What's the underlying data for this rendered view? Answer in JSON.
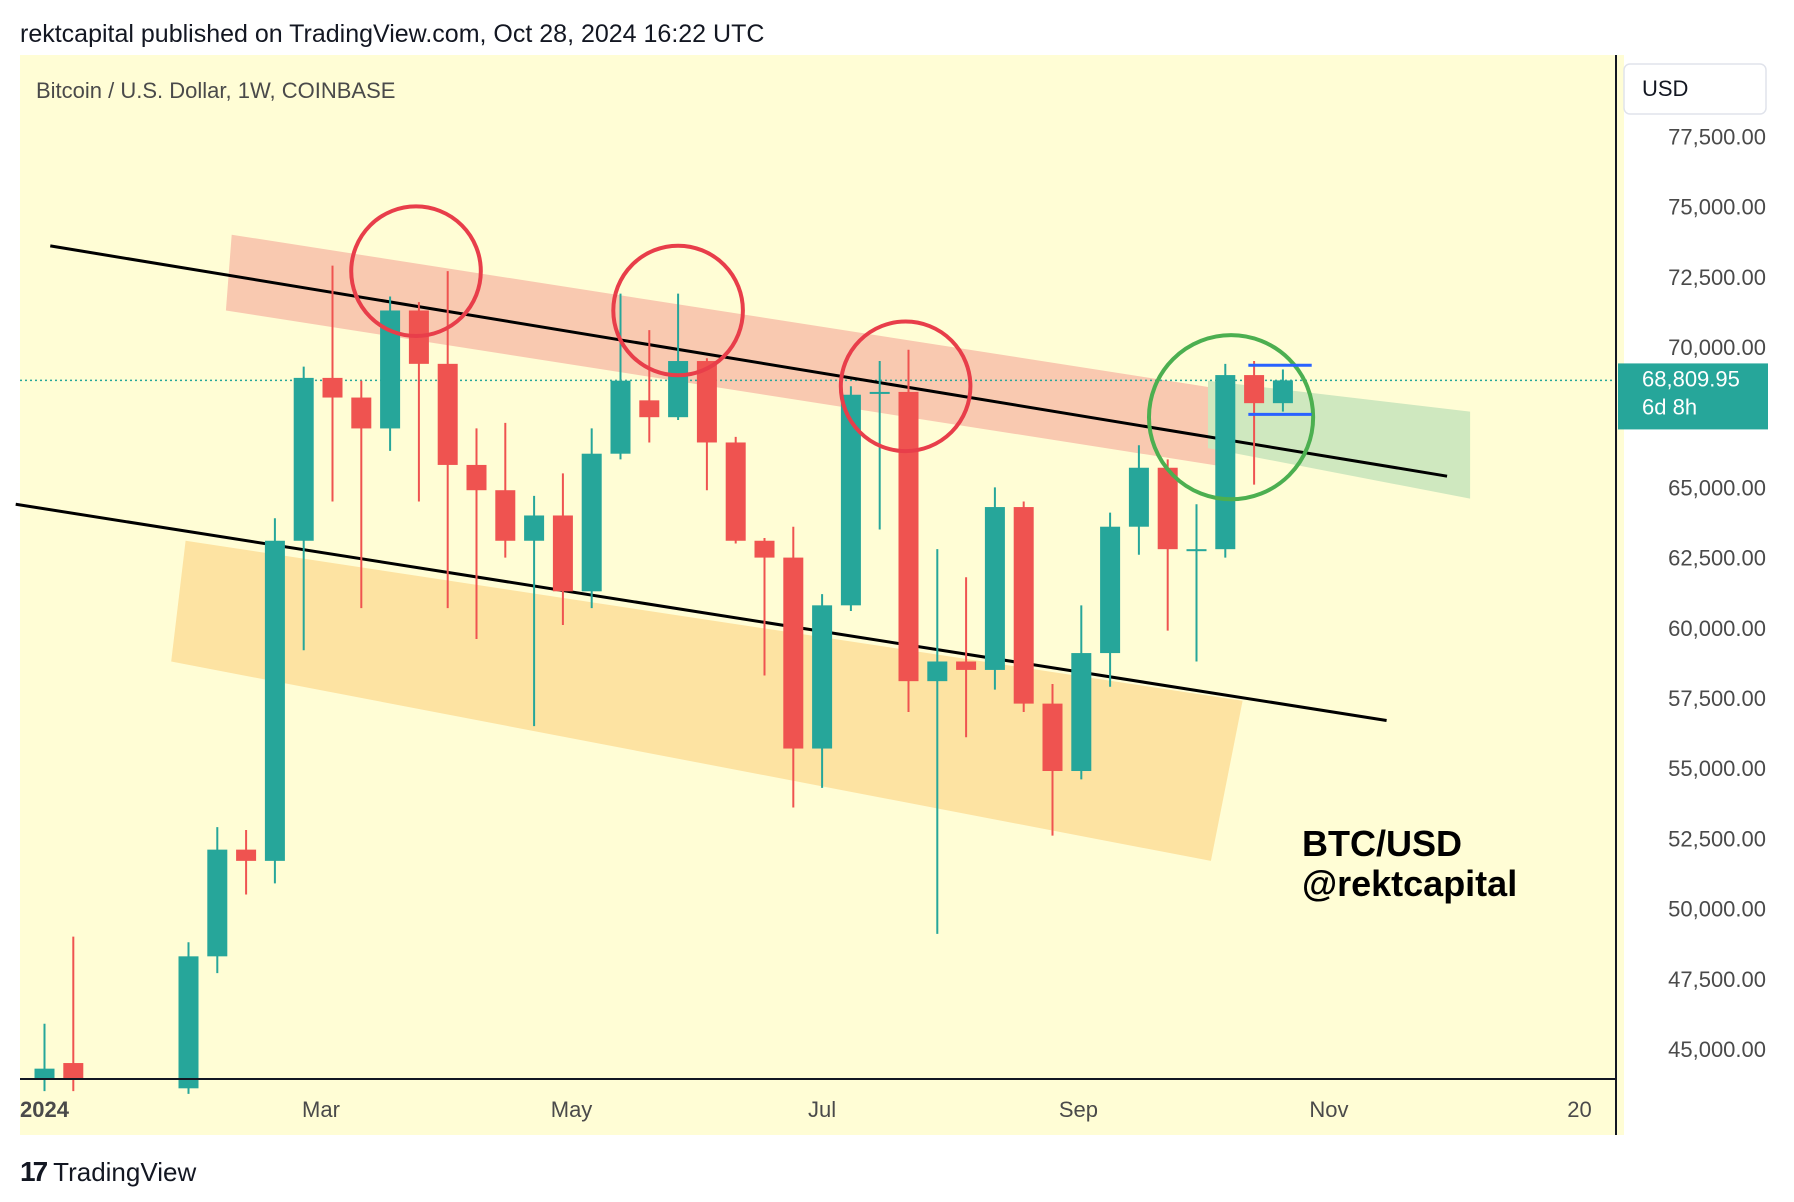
{
  "header": {
    "published_text": "rektcapital published on TradingView.com, Oct 28, 2024 16:22 UTC"
  },
  "footer": {
    "brand": "TradingView",
    "logo_mark": "17"
  },
  "colors": {
    "background": "#fffdd5",
    "bull": "#26a69a",
    "bear": "#ef5350",
    "resistance_zone": "#f9c9b0",
    "support_zone": "#fde3a2",
    "target_zone": "#cfe8bf",
    "circle_red": "#e83e4a",
    "circle_green": "#4caf50",
    "range_marker": "#2962ff",
    "trendline": "#000000"
  },
  "chart_data": {
    "type": "candlestick",
    "title": "Bitcoin / U.S. Dollar, 1W, COINBASE",
    "symbol": "BTC/USD",
    "timeframe": "1W",
    "exchange": "COINBASE",
    "currency_label": "USD",
    "y_ticks": [
      "77,500.00",
      "75,000.00",
      "72,500.00",
      "70,000.00",
      "65,000.00",
      "62,500.00",
      "60,000.00",
      "57,500.00",
      "55,000.00",
      "52,500.00",
      "50,000.00",
      "47,500.00",
      "45,000.00"
    ],
    "y_tick_values": [
      77500,
      75000,
      72500,
      70000,
      65000,
      62500,
      60000,
      57500,
      55000,
      52500,
      50000,
      47500,
      45000
    ],
    "x_ticks": [
      {
        "label": "2024",
        "week": 0
      },
      {
        "label": "Mar",
        "week": 9.6
      },
      {
        "label": "May",
        "week": 18.3
      },
      {
        "label": "Jul",
        "week": 27
      },
      {
        "label": "Sep",
        "week": 35.9
      },
      {
        "label": "Nov",
        "week": 44.6
      },
      {
        "label": "20",
        "week": 53.3
      }
    ],
    "ylim": [
      44000,
      81000
    ],
    "current_price": {
      "value": 68809.95,
      "label": "68,809.95",
      "countdown": "6d 8h"
    },
    "candles": [
      {
        "week": 0,
        "open": 43900,
        "high": 45900,
        "low": 43500,
        "close": 44300
      },
      {
        "week": 1,
        "open": 44500,
        "high": 49000,
        "low": 43500,
        "close": 43900
      },
      {
        "week": 5,
        "open": 43600,
        "high": 48800,
        "low": 43400,
        "close": 48300
      },
      {
        "week": 6,
        "open": 48300,
        "high": 52900,
        "low": 47700,
        "close": 52100
      },
      {
        "week": 7,
        "open": 52100,
        "high": 52800,
        "low": 50500,
        "close": 51700
      },
      {
        "week": 8,
        "open": 51700,
        "high": 63900,
        "low": 50900,
        "close": 63100
      },
      {
        "week": 9,
        "open": 63100,
        "high": 69300,
        "low": 59200,
        "close": 68900
      },
      {
        "week": 10,
        "open": 68900,
        "high": 72900,
        "low": 64500,
        "close": 68200
      },
      {
        "week": 11,
        "open": 68200,
        "high": 68800,
        "low": 60700,
        "close": 67100
      },
      {
        "week": 12,
        "open": 67100,
        "high": 71800,
        "low": 66300,
        "close": 71300
      },
      {
        "week": 13,
        "open": 71300,
        "high": 71600,
        "low": 64500,
        "close": 69400
      },
      {
        "week": 14,
        "open": 69400,
        "high": 72700,
        "low": 60700,
        "close": 65800
      },
      {
        "week": 15,
        "open": 65800,
        "high": 67100,
        "low": 59600,
        "close": 64900
      },
      {
        "week": 16,
        "open": 64900,
        "high": 67300,
        "low": 62500,
        "close": 63100
      },
      {
        "week": 17,
        "open": 63100,
        "high": 64700,
        "low": 56500,
        "close": 64000
      },
      {
        "week": 18,
        "open": 64000,
        "high": 65500,
        "low": 60100,
        "close": 61300
      },
      {
        "week": 19,
        "open": 61300,
        "high": 67100,
        "low": 60700,
        "close": 66200
      },
      {
        "week": 20,
        "open": 66200,
        "high": 71900,
        "low": 66000,
        "close": 68800
      },
      {
        "week": 21,
        "open": 68100,
        "high": 70600,
        "low": 66600,
        "close": 67500
      },
      {
        "week": 22,
        "open": 67500,
        "high": 71900,
        "low": 67400,
        "close": 69500
      },
      {
        "week": 23,
        "open": 69500,
        "high": 69600,
        "low": 64900,
        "close": 66600
      },
      {
        "week": 24,
        "open": 66600,
        "high": 66800,
        "low": 63000,
        "close": 63100
      },
      {
        "week": 25,
        "open": 63100,
        "high": 63200,
        "low": 58300,
        "close": 62500
      },
      {
        "week": 26,
        "open": 62500,
        "high": 63600,
        "low": 53600,
        "close": 55700
      },
      {
        "week": 27,
        "open": 55700,
        "high": 61200,
        "low": 54300,
        "close": 60800
      },
      {
        "week": 28,
        "open": 60800,
        "high": 68600,
        "low": 60600,
        "close": 68300
      },
      {
        "week": 29,
        "open": 68400,
        "high": 69500,
        "low": 63500,
        "close": 68400
      },
      {
        "week": 30,
        "open": 68400,
        "high": 69900,
        "low": 57000,
        "close": 58100
      },
      {
        "week": 31,
        "open": 58100,
        "high": 62800,
        "low": 49100,
        "close": 58800
      },
      {
        "week": 32,
        "open": 58800,
        "high": 61800,
        "low": 56100,
        "close": 58500
      },
      {
        "week": 33,
        "open": 58500,
        "high": 65000,
        "low": 57800,
        "close": 64300
      },
      {
        "week": 34,
        "open": 64300,
        "high": 64500,
        "low": 57000,
        "close": 57300
      },
      {
        "week": 35,
        "open": 57300,
        "high": 58000,
        "low": 52600,
        "close": 54900
      },
      {
        "week": 36,
        "open": 54900,
        "high": 60800,
        "low": 54600,
        "close": 59100
      },
      {
        "week": 37,
        "open": 59100,
        "high": 64100,
        "low": 57900,
        "close": 63600
      },
      {
        "week": 38,
        "open": 63600,
        "high": 66500,
        "low": 62600,
        "close": 65700
      },
      {
        "week": 39,
        "open": 65700,
        "high": 66000,
        "low": 59900,
        "close": 62800
      },
      {
        "week": 40,
        "open": 62800,
        "high": 64400,
        "low": 58800,
        "close": 62800
      },
      {
        "week": 41,
        "open": 62800,
        "high": 69400,
        "low": 62500,
        "close": 69000
      },
      {
        "week": 42,
        "open": 69000,
        "high": 69500,
        "low": 65100,
        "close": 68000
      },
      {
        "week": 43,
        "open": 68000,
        "high": 69200,
        "low": 67700,
        "close": 68810
      }
    ],
    "drawings": {
      "upper_trendline": {
        "points": [
          {
            "week": 0.2,
            "price": 73600
          },
          {
            "week": 48.7,
            "price": 65400
          }
        ]
      },
      "lower_trendline": {
        "points": [
          {
            "week": -1,
            "price": 64400
          },
          {
            "week": 46.6,
            "price": 56700
          }
        ]
      },
      "resistance_zone": {
        "polygon": [
          {
            "week": 6.5,
            "price": 74000
          },
          {
            "week": 41.5,
            "price": 68400
          },
          {
            "week": 41.2,
            "price": 65700
          },
          {
            "week": 6.3,
            "price": 71300
          }
        ]
      },
      "support_zone": {
        "polygon": [
          {
            "week": 4.9,
            "price": 63100
          },
          {
            "week": 41.6,
            "price": 57400
          },
          {
            "week": 40.5,
            "price": 51700
          },
          {
            "week": 4.4,
            "price": 58800
          }
        ]
      },
      "target_zone": {
        "polygon": [
          {
            "week": 40.4,
            "price": 68800
          },
          {
            "week": 49.5,
            "price": 67700
          },
          {
            "week": 49.5,
            "price": 64600
          },
          {
            "week": 40.4,
            "price": 66400
          }
        ]
      },
      "red_circles": [
        {
          "week": 12.9,
          "price": 72700,
          "radius_weeks": 2.25
        },
        {
          "week": 22.0,
          "price": 71300,
          "radius_weeks": 2.25
        },
        {
          "week": 29.9,
          "price": 68600,
          "radius_weeks": 2.25
        }
      ],
      "green_circle": {
        "week": 41.2,
        "price": 67500,
        "radius_weeks": 2.85
      },
      "range_lines": [
        {
          "price": 69350,
          "week_from": 41.8,
          "week_to": 44.0
        },
        {
          "price": 67600,
          "week_from": 41.8,
          "week_to": 44.0
        }
      ]
    },
    "watermark": {
      "line1": "BTC/USD",
      "line2": "@rektcapital"
    }
  }
}
